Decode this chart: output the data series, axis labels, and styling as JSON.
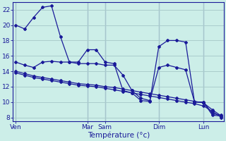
{
  "background_color": "#cceee8",
  "grid_color": "#aacccc",
  "line_color": "#1a1a99",
  "xlabel": "Température (°c)",
  "ylim": [
    7.5,
    23
  ],
  "yticks": [
    8,
    10,
    12,
    14,
    16,
    18,
    20,
    22
  ],
  "day_labels": [
    "Ven",
    "Mar",
    "Sam",
    "Dim",
    "Lun"
  ],
  "day_x": [
    0,
    8,
    10,
    16,
    21
  ],
  "vline_positions": [
    0,
    8,
    10,
    16,
    21
  ],
  "n_points": 24,
  "series": [
    [
      20.0,
      19.5,
      21.0,
      22.3,
      22.5,
      18.5,
      15.2,
      15.2,
      16.8,
      16.8,
      15.2,
      15.0,
      11.5,
      11.2,
      10.2,
      10.1,
      17.2,
      18.0,
      18.0,
      17.8,
      10.0,
      10.0,
      8.3,
      8.2
    ],
    [
      15.2,
      14.8,
      14.5,
      15.2,
      15.3,
      15.2,
      15.2,
      15.0,
      15.0,
      15.0,
      14.8,
      14.8,
      13.5,
      11.5,
      10.5,
      10.2,
      14.5,
      14.8,
      14.5,
      14.2,
      10.0,
      10.0,
      8.5,
      8.3
    ],
    [
      14.0,
      13.7,
      13.4,
      13.2,
      13.0,
      12.8,
      12.6,
      12.4,
      12.3,
      12.2,
      12.0,
      11.9,
      11.7,
      11.5,
      11.3,
      11.1,
      10.9,
      10.7,
      10.5,
      10.3,
      10.1,
      9.9,
      9.0,
      8.2
    ],
    [
      13.8,
      13.5,
      13.2,
      13.0,
      12.8,
      12.6,
      12.4,
      12.2,
      12.1,
      12.0,
      11.8,
      11.6,
      11.4,
      11.2,
      11.0,
      10.8,
      10.6,
      10.4,
      10.2,
      10.0,
      9.8,
      9.5,
      8.8,
      8.0
    ]
  ]
}
